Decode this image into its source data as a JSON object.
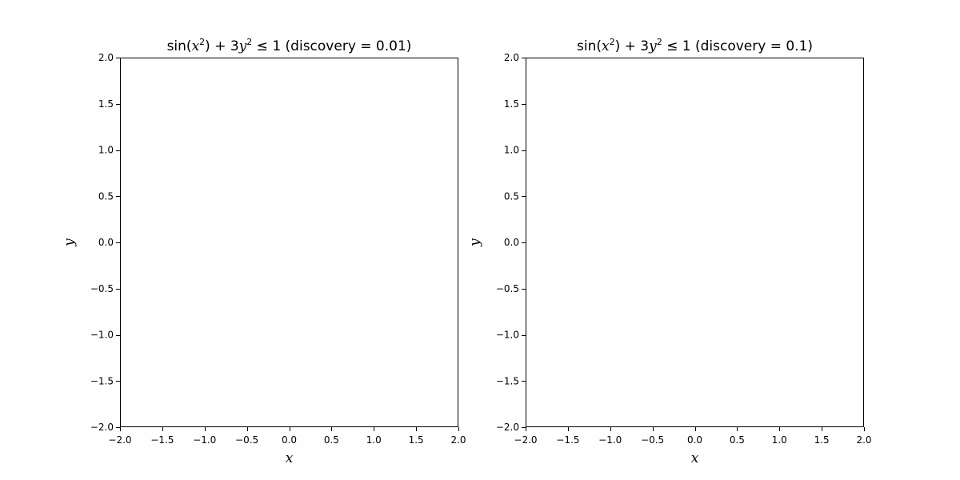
{
  "colors": {
    "background": "#fefefe",
    "axes": "#000000",
    "panel": "#ffffff"
  },
  "chart_data": [
    {
      "type": "scatter",
      "title": {
        "func": "sin",
        "open": "(",
        "var": "x",
        "exp": "2",
        "close": ")",
        "plus": " + 3",
        "var2": "y",
        "exp2": "2",
        "rel": " ≤ 1 (discovery = 0.01)"
      },
      "xlabel": "x",
      "ylabel": "y",
      "xlim": [
        -2.0,
        2.0
      ],
      "ylim": [
        -2.0,
        2.0
      ],
      "xticks": [
        -2.0,
        -1.5,
        -1.0,
        -0.5,
        0.0,
        0.5,
        1.0,
        1.5,
        2.0
      ],
      "yticks": [
        -2.0,
        -1.5,
        -1.0,
        -0.5,
        0.0,
        0.5,
        1.0,
        1.5,
        2.0
      ],
      "xtick_labels": [
        "−2.0",
        "−1.5",
        "−1.0",
        "−0.5",
        "0.0",
        "0.5",
        "1.0",
        "1.5",
        "2.0"
      ],
      "ytick_labels": [
        "−2.0",
        "−1.5",
        "−1.0",
        "−0.5",
        "0.0",
        "0.5",
        "1.0",
        "1.5",
        "2.0"
      ],
      "grid": false,
      "series": []
    },
    {
      "type": "scatter",
      "title": {
        "func": "sin",
        "open": "(",
        "var": "x",
        "exp": "2",
        "close": ")",
        "plus": " + 3",
        "var2": "y",
        "exp2": "2",
        "rel": " ≤ 1 (discovery = 0.1)"
      },
      "xlabel": "x",
      "ylabel": "y",
      "xlim": [
        -2.0,
        2.0
      ],
      "ylim": [
        -2.0,
        2.0
      ],
      "xticks": [
        -2.0,
        -1.5,
        -1.0,
        -0.5,
        0.0,
        0.5,
        1.0,
        1.5,
        2.0
      ],
      "yticks": [
        -2.0,
        -1.5,
        -1.0,
        -0.5,
        0.0,
        0.5,
        1.0,
        1.5,
        2.0
      ],
      "xtick_labels": [
        "−2.0",
        "−1.5",
        "−1.0",
        "−0.5",
        "0.0",
        "0.5",
        "1.0",
        "1.5",
        "2.0"
      ],
      "ytick_labels": [
        "−2.0",
        "−1.5",
        "−1.0",
        "−0.5",
        "0.0",
        "0.5",
        "1.0",
        "1.5",
        "2.0"
      ],
      "grid": false,
      "series": []
    }
  ]
}
